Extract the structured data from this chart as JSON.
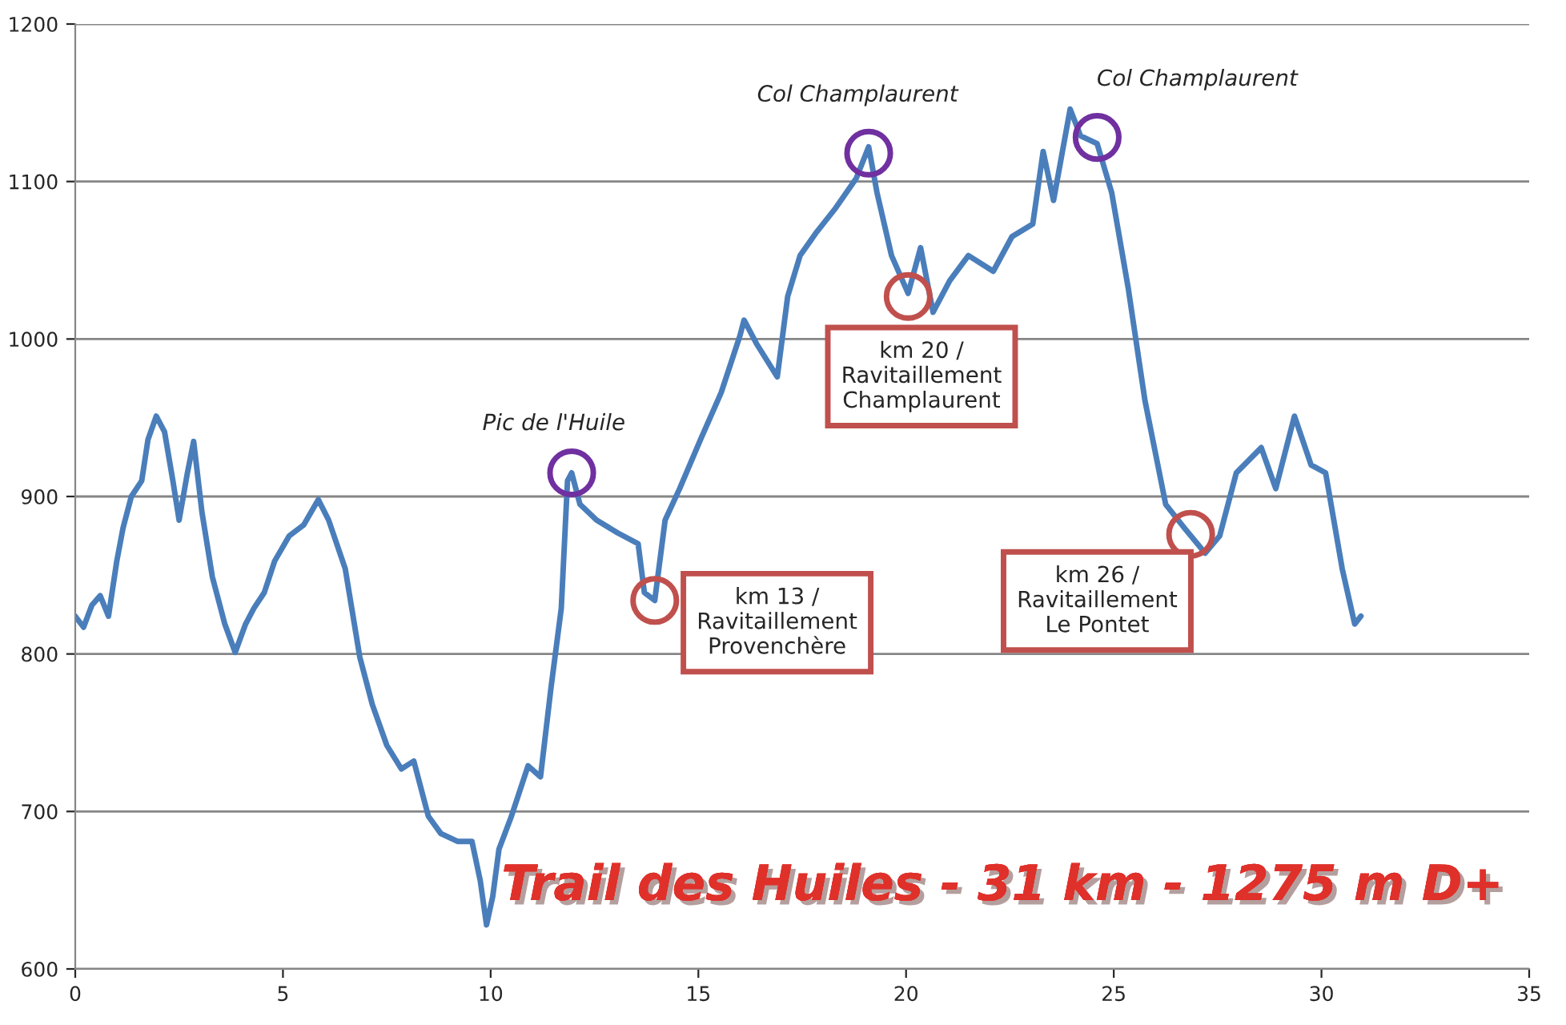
{
  "chart_data": {
    "type": "line",
    "title": "Trail des Huiles - 31 km - 1275 m D+",
    "x": [
      0,
      0.2,
      0.4,
      0.6,
      0.8,
      1.0,
      1.15,
      1.35,
      1.6,
      1.75,
      1.95,
      2.15,
      2.35,
      2.5,
      2.7,
      2.85,
      3.05,
      3.3,
      3.6,
      3.85,
      4.1,
      4.3,
      4.55,
      4.8,
      5.15,
      5.5,
      5.85,
      6.1,
      6.5,
      6.85,
      7.15,
      7.5,
      7.85,
      8.15,
      8.5,
      8.8,
      9.2,
      9.55,
      9.75,
      9.9,
      10.05,
      10.2,
      10.5,
      10.9,
      11.2,
      11.45,
      11.7,
      11.85,
      11.95,
      12.15,
      12.55,
      13.05,
      13.55,
      13.7,
      13.95,
      14.2,
      14.55,
      15.05,
      15.55,
      16.0,
      16.1,
      16.4,
      16.9,
      17.15,
      17.45,
      17.85,
      18.3,
      18.8,
      19.1,
      19.3,
      19.65,
      20.05,
      20.35,
      20.65,
      21.05,
      21.5,
      22.1,
      22.55,
      23.05,
      23.3,
      23.55,
      23.95,
      24.2,
      24.6,
      24.95,
      25.35,
      25.75,
      26.25,
      26.7,
      27.2,
      27.55,
      27.95,
      28.55,
      28.9,
      29.35,
      29.75,
      30.1,
      30.5,
      30.8,
      30.95
    ],
    "series": [
      {
        "color": "#4a7ebb",
        "values": [
          824,
          817,
          831,
          837,
          824,
          859,
          880,
          900,
          910,
          936,
          951,
          941,
          910,
          885,
          915,
          935,
          890,
          849,
          819,
          801,
          819,
          829,
          839,
          859,
          875,
          882,
          898,
          885,
          854,
          798,
          768,
          742,
          727,
          732,
          697,
          686,
          681,
          681,
          656,
          628,
          646,
          676,
          697,
          729,
          722,
          778,
          829,
          910,
          915,
          895,
          885,
          877,
          870,
          839,
          834,
          885,
          905,
          936,
          966,
          1002,
          1012,
          997,
          976,
          1027,
          1053,
          1068,
          1083,
          1102,
          1122,
          1093,
          1053,
          1029,
          1058,
          1017,
          1037,
          1053,
          1043,
          1065,
          1073,
          1119,
          1088,
          1146,
          1129,
          1124,
          1093,
          1032,
          961,
          895,
          880,
          864,
          875,
          915,
          931,
          905,
          951,
          920,
          915,
          854,
          819,
          824
        ]
      }
    ],
    "xlim": [
      0,
      35
    ],
    "xticks": [
      0,
      5,
      10,
      15,
      20,
      25,
      30,
      35
    ],
    "ylim": [
      600,
      1200
    ],
    "yticks": [
      600,
      700,
      800,
      900,
      1000,
      1100,
      1200
    ],
    "grid": "y",
    "legend": false,
    "marker": "none",
    "line_style": "solid",
    "annotations": [
      {
        "text": "Pic de l'Huile",
        "x": 11.95,
        "y": 915
      },
      {
        "text": "Col Champlaurent",
        "x": 19.1,
        "y": 1118
      },
      {
        "text": "Col Champlaurent",
        "x": 24.6,
        "y": 1128
      },
      {
        "text": "km 13 /\nRavitaillement\nProvenchère",
        "x": 13.95,
        "y": 834
      },
      {
        "text": "km 20 /\nRavitaillement\nChamplaurent",
        "x": 20.05,
        "y": 1027
      },
      {
        "text": "km 26 /\nRavitaillement\nLe Pontet",
        "x": 26.85,
        "y": 876
      }
    ]
  }
}
